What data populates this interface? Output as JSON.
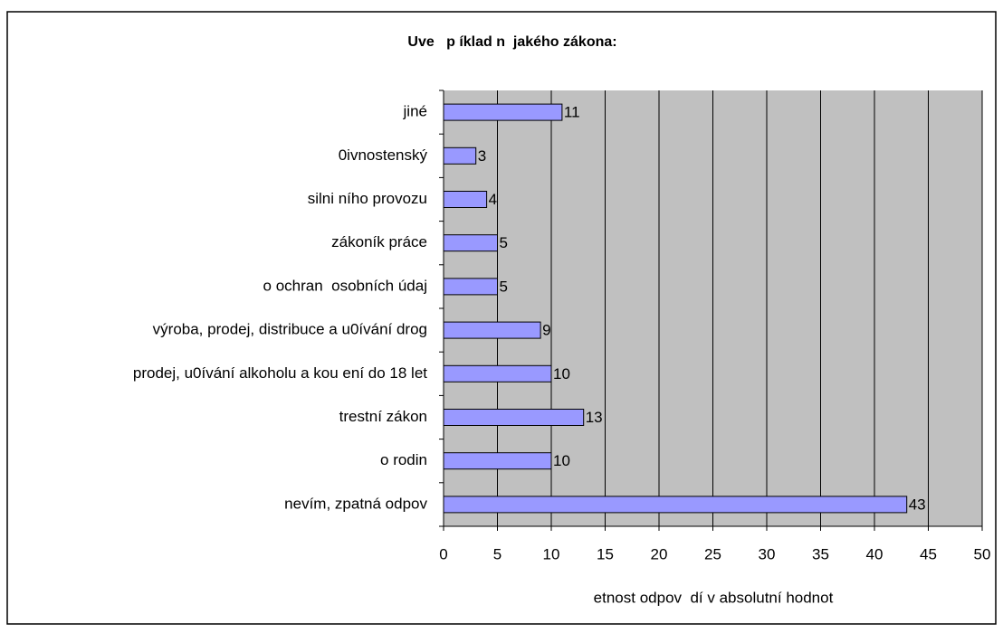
{
  "chart_data": {
    "type": "bar",
    "orientation": "horizontal",
    "title": "Uve   p íklad n  jakého zákona:",
    "xlabel": "etnost odpov  dí v absolutní hodnot",
    "categories": [
      "jiné",
      "0ivnostenský",
      "silni ního provozu",
      "zákoník práce",
      "o ochran  osobních údaj",
      "výroba, prodej, distribuce a u0ívání drog",
      "prodej, u0ívání alkoholu a kou ení do 18 let",
      "trestní zákon",
      "o rodin",
      "nevím, zpatná odpov"
    ],
    "values": [
      11,
      3,
      4,
      5,
      5,
      9,
      10,
      13,
      10,
      43
    ],
    "color": "#9999ff",
    "xlim": [
      0,
      50
    ],
    "xticks": [
      0,
      5,
      10,
      15,
      20,
      25,
      30,
      35,
      40,
      45,
      50
    ],
    "grid": true,
    "plot_background": "#c0c0c0"
  }
}
